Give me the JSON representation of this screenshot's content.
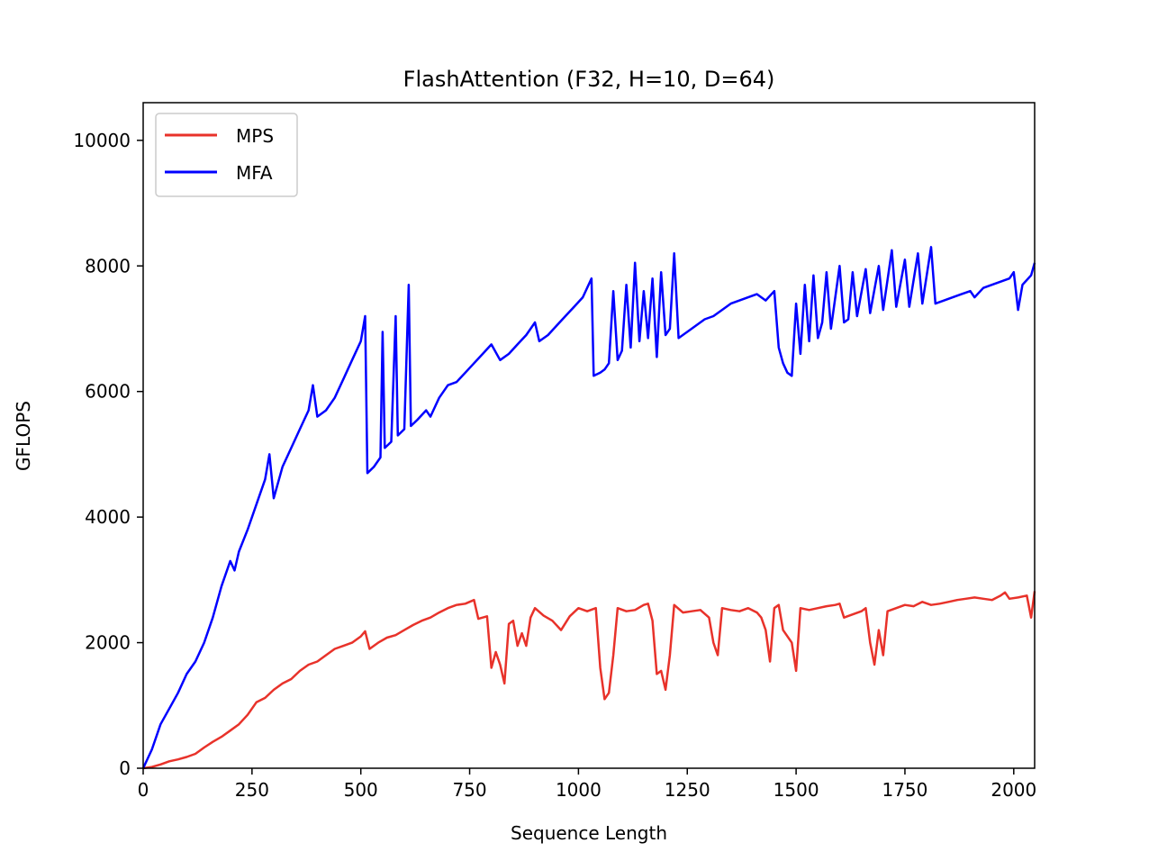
{
  "chart_data": {
    "type": "line",
    "title": "FlashAttention (F32, H=10, D=64)",
    "xlabel": "Sequence Length",
    "ylabel": "GFLOPS",
    "xlim": [
      0,
      2048
    ],
    "ylim": [
      0,
      10600
    ],
    "xticks": [
      0,
      250,
      500,
      750,
      1000,
      1250,
      1500,
      1750,
      2000
    ],
    "yticks": [
      0,
      2000,
      4000,
      6000,
      8000,
      10000
    ],
    "grid": false,
    "legend": "top-left",
    "series": [
      {
        "name": "MPS",
        "color": "#e8322a",
        "points": [
          [
            0,
            0
          ],
          [
            20,
            20
          ],
          [
            40,
            60
          ],
          [
            60,
            110
          ],
          [
            80,
            140
          ],
          [
            100,
            180
          ],
          [
            120,
            230
          ],
          [
            140,
            330
          ],
          [
            160,
            420
          ],
          [
            180,
            500
          ],
          [
            200,
            600
          ],
          [
            220,
            700
          ],
          [
            240,
            850
          ],
          [
            260,
            1050
          ],
          [
            280,
            1120
          ],
          [
            300,
            1250
          ],
          [
            320,
            1350
          ],
          [
            340,
            1420
          ],
          [
            360,
            1550
          ],
          [
            380,
            1650
          ],
          [
            400,
            1700
          ],
          [
            420,
            1800
          ],
          [
            440,
            1900
          ],
          [
            460,
            1950
          ],
          [
            480,
            2000
          ],
          [
            500,
            2100
          ],
          [
            510,
            2180
          ],
          [
            520,
            1900
          ],
          [
            540,
            2000
          ],
          [
            560,
            2080
          ],
          [
            580,
            2120
          ],
          [
            600,
            2200
          ],
          [
            620,
            2280
          ],
          [
            640,
            2350
          ],
          [
            660,
            2400
          ],
          [
            680,
            2480
          ],
          [
            700,
            2550
          ],
          [
            720,
            2600
          ],
          [
            740,
            2620
          ],
          [
            760,
            2680
          ],
          [
            770,
            2380
          ],
          [
            790,
            2420
          ],
          [
            800,
            1600
          ],
          [
            810,
            1850
          ],
          [
            820,
            1650
          ],
          [
            830,
            1350
          ],
          [
            840,
            2300
          ],
          [
            850,
            2350
          ],
          [
            860,
            1950
          ],
          [
            870,
            2150
          ],
          [
            880,
            1950
          ],
          [
            890,
            2400
          ],
          [
            900,
            2550
          ],
          [
            920,
            2430
          ],
          [
            940,
            2350
          ],
          [
            960,
            2200
          ],
          [
            980,
            2420
          ],
          [
            1000,
            2550
          ],
          [
            1020,
            2500
          ],
          [
            1040,
            2550
          ],
          [
            1050,
            1600
          ],
          [
            1060,
            1100
          ],
          [
            1070,
            1200
          ],
          [
            1080,
            1800
          ],
          [
            1090,
            2550
          ],
          [
            1110,
            2500
          ],
          [
            1130,
            2520
          ],
          [
            1150,
            2600
          ],
          [
            1160,
            2620
          ],
          [
            1170,
            2350
          ],
          [
            1180,
            1500
          ],
          [
            1190,
            1550
          ],
          [
            1200,
            1250
          ],
          [
            1210,
            1800
          ],
          [
            1220,
            2600
          ],
          [
            1240,
            2480
          ],
          [
            1260,
            2500
          ],
          [
            1280,
            2520
          ],
          [
            1300,
            2400
          ],
          [
            1310,
            2000
          ],
          [
            1320,
            1800
          ],
          [
            1330,
            2550
          ],
          [
            1350,
            2520
          ],
          [
            1370,
            2500
          ],
          [
            1390,
            2550
          ],
          [
            1410,
            2480
          ],
          [
            1420,
            2400
          ],
          [
            1430,
            2200
          ],
          [
            1440,
            1700
          ],
          [
            1450,
            2550
          ],
          [
            1460,
            2600
          ],
          [
            1470,
            2200
          ],
          [
            1490,
            2000
          ],
          [
            1500,
            1550
          ],
          [
            1510,
            2550
          ],
          [
            1530,
            2520
          ],
          [
            1550,
            2550
          ],
          [
            1570,
            2580
          ],
          [
            1590,
            2600
          ],
          [
            1600,
            2620
          ],
          [
            1610,
            2400
          ],
          [
            1630,
            2450
          ],
          [
            1650,
            2500
          ],
          [
            1660,
            2550
          ],
          [
            1670,
            2000
          ],
          [
            1680,
            1650
          ],
          [
            1690,
            2200
          ],
          [
            1700,
            1800
          ],
          [
            1710,
            2500
          ],
          [
            1730,
            2550
          ],
          [
            1750,
            2600
          ],
          [
            1770,
            2580
          ],
          [
            1790,
            2650
          ],
          [
            1810,
            2600
          ],
          [
            1830,
            2620
          ],
          [
            1850,
            2650
          ],
          [
            1870,
            2680
          ],
          [
            1890,
            2700
          ],
          [
            1910,
            2720
          ],
          [
            1930,
            2700
          ],
          [
            1950,
            2680
          ],
          [
            1970,
            2750
          ],
          [
            1980,
            2800
          ],
          [
            1990,
            2700
          ],
          [
            2010,
            2720
          ],
          [
            2030,
            2750
          ],
          [
            2040,
            2400
          ],
          [
            2048,
            2820
          ]
        ]
      },
      {
        "name": "MFA",
        "color": "#0000ff",
        "points": [
          [
            0,
            0
          ],
          [
            20,
            300
          ],
          [
            40,
            700
          ],
          [
            60,
            950
          ],
          [
            80,
            1200
          ],
          [
            100,
            1500
          ],
          [
            120,
            1700
          ],
          [
            140,
            2000
          ],
          [
            160,
            2400
          ],
          [
            180,
            2900
          ],
          [
            200,
            3300
          ],
          [
            210,
            3150
          ],
          [
            220,
            3450
          ],
          [
            240,
            3800
          ],
          [
            260,
            4200
          ],
          [
            280,
            4600
          ],
          [
            290,
            5000
          ],
          [
            300,
            4300
          ],
          [
            320,
            4800
          ],
          [
            340,
            5100
          ],
          [
            360,
            5400
          ],
          [
            380,
            5700
          ],
          [
            390,
            6100
          ],
          [
            400,
            5600
          ],
          [
            420,
            5700
          ],
          [
            440,
            5900
          ],
          [
            460,
            6200
          ],
          [
            480,
            6500
          ],
          [
            500,
            6800
          ],
          [
            510,
            7200
          ],
          [
            515,
            4700
          ],
          [
            530,
            4800
          ],
          [
            545,
            4950
          ],
          [
            550,
            6950
          ],
          [
            555,
            5100
          ],
          [
            570,
            5200
          ],
          [
            580,
            7200
          ],
          [
            585,
            5300
          ],
          [
            600,
            5400
          ],
          [
            610,
            7700
          ],
          [
            615,
            5450
          ],
          [
            630,
            5550
          ],
          [
            650,
            5700
          ],
          [
            660,
            5600
          ],
          [
            680,
            5900
          ],
          [
            700,
            6100
          ],
          [
            720,
            6150
          ],
          [
            740,
            6300
          ],
          [
            760,
            6450
          ],
          [
            780,
            6600
          ],
          [
            800,
            6750
          ],
          [
            820,
            6500
          ],
          [
            840,
            6600
          ],
          [
            860,
            6750
          ],
          [
            880,
            6900
          ],
          [
            900,
            7100
          ],
          [
            910,
            6800
          ],
          [
            930,
            6900
          ],
          [
            950,
            7050
          ],
          [
            970,
            7200
          ],
          [
            990,
            7350
          ],
          [
            1010,
            7500
          ],
          [
            1030,
            7800
          ],
          [
            1035,
            6250
          ],
          [
            1050,
            6300
          ],
          [
            1060,
            6350
          ],
          [
            1070,
            6450
          ],
          [
            1080,
            7600
          ],
          [
            1090,
            6500
          ],
          [
            1100,
            6650
          ],
          [
            1110,
            7700
          ],
          [
            1120,
            6700
          ],
          [
            1130,
            8050
          ],
          [
            1140,
            6800
          ],
          [
            1150,
            7600
          ],
          [
            1160,
            6850
          ],
          [
            1170,
            7800
          ],
          [
            1180,
            6550
          ],
          [
            1190,
            7900
          ],
          [
            1200,
            6900
          ],
          [
            1210,
            7000
          ],
          [
            1220,
            8200
          ],
          [
            1230,
            6850
          ],
          [
            1250,
            6950
          ],
          [
            1270,
            7050
          ],
          [
            1290,
            7150
          ],
          [
            1310,
            7200
          ],
          [
            1330,
            7300
          ],
          [
            1350,
            7400
          ],
          [
            1370,
            7450
          ],
          [
            1390,
            7500
          ],
          [
            1410,
            7550
          ],
          [
            1430,
            7450
          ],
          [
            1450,
            7600
          ],
          [
            1460,
            6700
          ],
          [
            1470,
            6450
          ],
          [
            1480,
            6300
          ],
          [
            1490,
            6250
          ],
          [
            1500,
            7400
          ],
          [
            1510,
            6600
          ],
          [
            1520,
            7700
          ],
          [
            1530,
            6800
          ],
          [
            1540,
            7850
          ],
          [
            1550,
            6850
          ],
          [
            1560,
            7100
          ],
          [
            1570,
            7900
          ],
          [
            1580,
            7000
          ],
          [
            1600,
            8000
          ],
          [
            1610,
            7100
          ],
          [
            1620,
            7150
          ],
          [
            1630,
            7900
          ],
          [
            1640,
            7200
          ],
          [
            1660,
            7950
          ],
          [
            1670,
            7250
          ],
          [
            1690,
            8000
          ],
          [
            1700,
            7300
          ],
          [
            1720,
            8250
          ],
          [
            1730,
            7350
          ],
          [
            1750,
            8100
          ],
          [
            1760,
            7350
          ],
          [
            1780,
            8200
          ],
          [
            1790,
            7400
          ],
          [
            1810,
            8300
          ],
          [
            1820,
            7400
          ],
          [
            1840,
            7450
          ],
          [
            1860,
            7500
          ],
          [
            1880,
            7550
          ],
          [
            1900,
            7600
          ],
          [
            1910,
            7500
          ],
          [
            1930,
            7650
          ],
          [
            1950,
            7700
          ],
          [
            1970,
            7750
          ],
          [
            1990,
            7800
          ],
          [
            2000,
            7900
          ],
          [
            2010,
            7300
          ],
          [
            2020,
            7700
          ],
          [
            2040,
            7850
          ],
          [
            2048,
            8050
          ]
        ]
      }
    ]
  }
}
